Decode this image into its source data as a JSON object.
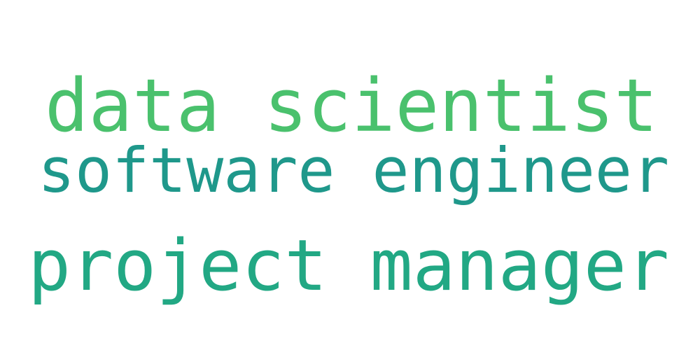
{
  "words": [
    {
      "text": "data scientist",
      "color": "#4ac16d"
    },
    {
      "text": "software engineer",
      "color": "#1f988b"
    },
    {
      "text": "project manager",
      "color": "#22a884"
    }
  ]
}
